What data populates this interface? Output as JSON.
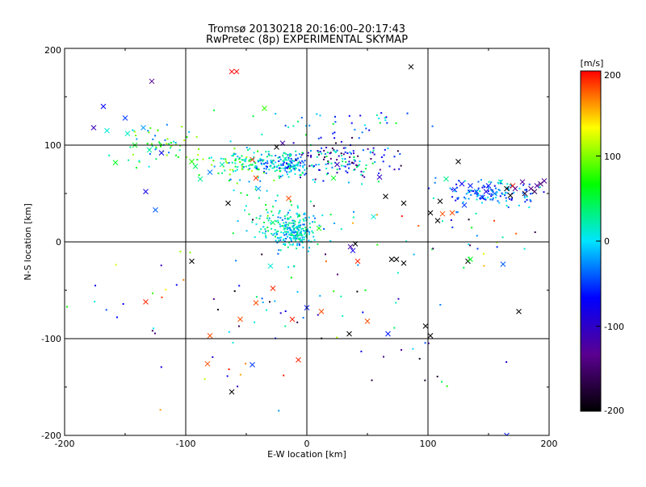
{
  "chart_data": {
    "type": "scatter",
    "title": "Tromsø 20130218 20:16:00–20:17:43",
    "subtitle": "RwPretec (8p) EXPERIMENTAL SKYMAP",
    "xlabel": "E-W location [km]",
    "ylabel": "N-S location [km]",
    "xlim": [
      -200,
      200
    ],
    "ylim": [
      -200,
      200
    ],
    "x_ticks": [
      "-200",
      "-100",
      "0",
      "100",
      "200"
    ],
    "y_ticks": [
      "-200",
      "-100",
      "0",
      "100",
      "200"
    ],
    "grid": true,
    "grid_lines_x": [
      -100,
      0,
      100
    ],
    "grid_lines_y": [
      -100,
      0,
      100
    ],
    "colorbar": {
      "label": "[m/s]",
      "range": [
        -200,
        200
      ],
      "ticks": [
        "-200",
        "-100",
        "0",
        "100",
        "200"
      ],
      "colormap": "rainbow (black-purple-blue-cyan-green-yellow-red)",
      "stops": [
        "#000000",
        "#5a0090",
        "#0000ff",
        "#00e5ff",
        "#00ff00",
        "#ffff00",
        "#ff0000"
      ]
    },
    "series": [
      {
        "marker": "x",
        "points": [
          {
            "x": -176,
            "y": 118,
            "v": -110
          },
          {
            "x": -168,
            "y": 140,
            "v": -70
          },
          {
            "x": -165,
            "y": 115,
            "v": 10
          },
          {
            "x": -150,
            "y": 128,
            "v": -50
          },
          {
            "x": -148,
            "y": 112,
            "v": 15
          },
          {
            "x": -142,
            "y": 100,
            "v": 60
          },
          {
            "x": -135,
            "y": 118,
            "v": -20
          },
          {
            "x": -130,
            "y": 95,
            "v": 25
          },
          {
            "x": -158,
            "y": 82,
            "v": 60
          },
          {
            "x": -128,
            "y": 166,
            "v": -130
          },
          {
            "x": -133,
            "y": 52,
            "v": -80
          },
          {
            "x": -133,
            "y": -62,
            "v": 190
          },
          {
            "x": -120,
            "y": 92,
            "v": -75
          },
          {
            "x": -125,
            "y": 33,
            "v": -40
          },
          {
            "x": -95,
            "y": 83,
            "v": 75
          },
          {
            "x": -92,
            "y": 78,
            "v": 40
          },
          {
            "x": -88,
            "y": 65,
            "v": 30
          },
          {
            "x": -80,
            "y": 72,
            "v": -30
          },
          {
            "x": -70,
            "y": 80,
            "v": 20
          },
          {
            "x": -95,
            "y": -20,
            "v": -200
          },
          {
            "x": -80,
            "y": -97,
            "v": 180
          },
          {
            "x": -82,
            "y": -126,
            "v": 180
          },
          {
            "x": -62,
            "y": 176,
            "v": 200
          },
          {
            "x": -58,
            "y": 176,
            "v": 200
          },
          {
            "x": -65,
            "y": 40,
            "v": -200
          },
          {
            "x": -62,
            "y": -155,
            "v": -200
          },
          {
            "x": -55,
            "y": -80,
            "v": 180
          },
          {
            "x": -45,
            "y": 85,
            "v": 180
          },
          {
            "x": -45,
            "y": -127,
            "v": -50
          },
          {
            "x": -42,
            "y": 66,
            "v": 190
          },
          {
            "x": -42,
            "y": -63,
            "v": 180
          },
          {
            "x": -40,
            "y": 55,
            "v": -20
          },
          {
            "x": -35,
            "y": 138,
            "v": 80
          },
          {
            "x": -30,
            "y": -25,
            "v": 10
          },
          {
            "x": -28,
            "y": -48,
            "v": 190
          },
          {
            "x": -28,
            "y": 20,
            "v": 40
          },
          {
            "x": -25,
            "y": 98,
            "v": -200
          },
          {
            "x": -20,
            "y": 102,
            "v": -120
          },
          {
            "x": -18,
            "y": 86,
            "v": 20
          },
          {
            "x": -15,
            "y": 45,
            "v": 180
          },
          {
            "x": -12,
            "y": -80,
            "v": 190
          },
          {
            "x": -10,
            "y": 78,
            "v": 10
          },
          {
            "x": -7,
            "y": -122,
            "v": 190
          },
          {
            "x": 0,
            "y": -68,
            "v": -60
          },
          {
            "x": 10,
            "y": 14,
            "v": 70
          },
          {
            "x": 12,
            "y": -72,
            "v": 180
          },
          {
            "x": 22,
            "y": 66,
            "v": 60
          },
          {
            "x": 25,
            "y": 80,
            "v": -110
          },
          {
            "x": 35,
            "y": -95,
            "v": -200
          },
          {
            "x": 36,
            "y": -5,
            "v": -120
          },
          {
            "x": 38,
            "y": -9,
            "v": -80
          },
          {
            "x": 40,
            "y": -2,
            "v": -200
          },
          {
            "x": 42,
            "y": -20,
            "v": 190
          },
          {
            "x": 50,
            "y": -82,
            "v": 180
          },
          {
            "x": 55,
            "y": 26,
            "v": 10
          },
          {
            "x": 60,
            "y": 67,
            "v": -100
          },
          {
            "x": 65,
            "y": 47,
            "v": -200
          },
          {
            "x": 67,
            "y": -95,
            "v": -60
          },
          {
            "x": 70,
            "y": -18,
            "v": -200
          },
          {
            "x": 74,
            "y": -18,
            "v": -200
          },
          {
            "x": 80,
            "y": -22,
            "v": -200
          },
          {
            "x": 80,
            "y": 40,
            "v": -200
          },
          {
            "x": 86,
            "y": 181,
            "v": -200
          },
          {
            "x": 98,
            "y": -87,
            "v": -200
          },
          {
            "x": 102,
            "y": -97,
            "v": -200
          },
          {
            "x": 102,
            "y": 30,
            "v": -200
          },
          {
            "x": 108,
            "y": 22,
            "v": -200
          },
          {
            "x": 110,
            "y": 42,
            "v": -200
          },
          {
            "x": 112,
            "y": 29,
            "v": 180
          },
          {
            "x": 115,
            "y": 65,
            "v": 30
          },
          {
            "x": 120,
            "y": 30,
            "v": 180
          },
          {
            "x": 122,
            "y": 54,
            "v": -60
          },
          {
            "x": 125,
            "y": 83,
            "v": -200
          },
          {
            "x": 128,
            "y": 60,
            "v": -70
          },
          {
            "x": 130,
            "y": 38,
            "v": -50
          },
          {
            "x": 133,
            "y": -20,
            "v": -200
          },
          {
            "x": 135,
            "y": 58,
            "v": -60
          },
          {
            "x": 135,
            "y": -18,
            "v": 60
          },
          {
            "x": 140,
            "y": 52,
            "v": -40
          },
          {
            "x": 145,
            "y": 46,
            "v": -60
          },
          {
            "x": 148,
            "y": 52,
            "v": -80
          },
          {
            "x": 150,
            "y": 58,
            "v": -60
          },
          {
            "x": 155,
            "y": 50,
            "v": -30
          },
          {
            "x": 160,
            "y": 62,
            "v": 20
          },
          {
            "x": 162,
            "y": -23,
            "v": -40
          },
          {
            "x": 165,
            "y": 55,
            "v": -200
          },
          {
            "x": 165,
            "y": -200,
            "v": -60
          },
          {
            "x": 168,
            "y": 48,
            "v": -200
          },
          {
            "x": 170,
            "y": 58,
            "v": 190
          },
          {
            "x": 172,
            "y": 55,
            "v": -130
          },
          {
            "x": 175,
            "y": -72,
            "v": -200
          },
          {
            "x": 178,
            "y": 62,
            "v": -130
          },
          {
            "x": 180,
            "y": 50,
            "v": -180
          },
          {
            "x": 185,
            "y": 55,
            "v": -140
          },
          {
            "x": 188,
            "y": 52,
            "v": -160
          },
          {
            "x": 190,
            "y": 58,
            "v": -120
          },
          {
            "x": 193,
            "y": 60,
            "v": -150
          },
          {
            "x": 196,
            "y": 63,
            "v": -130
          }
        ]
      },
      {
        "marker": "dot",
        "clusters": [
          {
            "cx": -10,
            "cy": 10,
            "rx": 18,
            "ry": 15,
            "n": 220,
            "vmin": -40,
            "vmax": 40
          },
          {
            "cx": -20,
            "cy": 80,
            "rx": 28,
            "ry": 12,
            "n": 170,
            "vmin": -60,
            "vmax": 40
          },
          {
            "cx": 30,
            "cy": 85,
            "rx": 40,
            "ry": 18,
            "n": 150,
            "vmin": -180,
            "vmax": 60
          },
          {
            "cx": -55,
            "cy": 80,
            "rx": 30,
            "ry": 15,
            "n": 90,
            "vmin": -40,
            "vmax": 120
          },
          {
            "cx": -120,
            "cy": 100,
            "rx": 30,
            "ry": 18,
            "n": 60,
            "vmin": -40,
            "vmax": 120
          },
          {
            "cx": 150,
            "cy": 50,
            "rx": 40,
            "ry": 12,
            "n": 130,
            "vmin": -80,
            "vmax": 20
          },
          {
            "cx": -25,
            "cy": 30,
            "rx": 30,
            "ry": 25,
            "n": 70,
            "vmin": -20,
            "vmax": 60
          },
          {
            "cx": 20,
            "cy": 120,
            "rx": 60,
            "ry": 20,
            "n": 40,
            "vmin": -80,
            "vmax": 60
          },
          {
            "cx": 0,
            "cy": -40,
            "rx": 110,
            "ry": 60,
            "n": 55,
            "vmin": -200,
            "vmax": 200
          },
          {
            "cx": 0,
            "cy": -130,
            "rx": 170,
            "ry": 50,
            "n": 30,
            "vmin": -200,
            "vmax": 200
          },
          {
            "cx": 140,
            "cy": 0,
            "rx": 60,
            "ry": 30,
            "n": 30,
            "vmin": -200,
            "vmax": 200
          },
          {
            "cx": -150,
            "cy": -60,
            "rx": 50,
            "ry": 60,
            "n": 12,
            "vmin": -200,
            "vmax": 200
          }
        ],
        "seed": 7
      }
    ]
  }
}
